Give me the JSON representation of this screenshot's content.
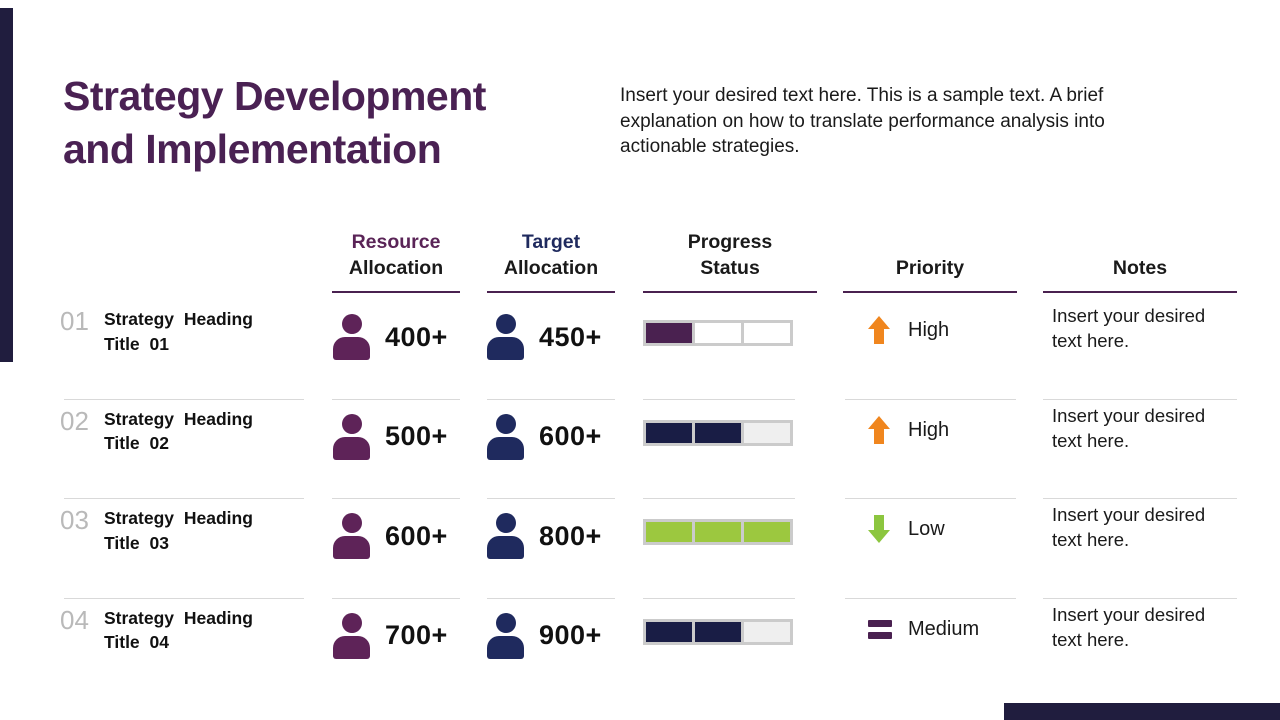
{
  "slide": {
    "title_line1": "Strategy Development",
    "title_line2": "and Implementation",
    "intro_text": "Insert your desired text here. This is a sample text. A brief explanation on how to translate performance analysis into actionable strategies."
  },
  "colors": {
    "title_purple": "#4A2153",
    "header_resource_purple": "#5A2457",
    "header_target_navy": "#1F2A5E",
    "header_text": "#1A1A1A",
    "accent_bar_navy": "#201D3E",
    "underline_purple": "#4A2150",
    "divider_gray": "#D9D9D9",
    "row_number_gray": "#B9B9B9",
    "resource_icon": "#5E2358",
    "target_icon": "#1F2A5E",
    "progress_frame_gray": "#CBCBCB"
  },
  "table": {
    "headers": {
      "resource": {
        "line1": "Resource",
        "line2": "Allocation"
      },
      "target": {
        "line1": "Target",
        "line2": "Allocation"
      },
      "progress": {
        "line1": "Progress",
        "line2": "Status"
      },
      "priority": {
        "label": "Priority"
      },
      "notes": {
        "label": "Notes"
      }
    }
  },
  "rows": [
    {
      "number": "01",
      "heading": "Strategy Heading Title 01",
      "resource_value": "400+",
      "target_value": "450+",
      "progress": {
        "filled": 1,
        "total": 3,
        "fill_color": "#4A2150",
        "empty_color": "#FFFFFF"
      },
      "priority": {
        "icon": "arrow-up",
        "color": "#F0861E",
        "label": "High"
      },
      "notes": "Insert your desired text here."
    },
    {
      "number": "02",
      "heading": "Strategy Heading Title 02",
      "resource_value": "500+",
      "target_value": "600+",
      "progress": {
        "filled": 2,
        "total": 3,
        "fill_color": "#191D45",
        "empty_color": "#EFEFEF"
      },
      "priority": {
        "icon": "arrow-up",
        "color": "#F0861E",
        "label": "High"
      },
      "notes": "Insert your desired text here."
    },
    {
      "number": "03",
      "heading": "Strategy Heading Title 03",
      "resource_value": "600+",
      "target_value": "800+",
      "progress": {
        "filled": 3,
        "total": 3,
        "fill_color": "#9CC83F",
        "empty_color": "#EFEFEF"
      },
      "priority": {
        "icon": "arrow-down",
        "color": "#8CC63F",
        "label": "Low"
      },
      "notes": "Insert your desired text here."
    },
    {
      "number": "04",
      "heading": "Strategy Heading Title 04",
      "resource_value": "700+",
      "target_value": "900+",
      "progress": {
        "filled": 2,
        "total": 3,
        "fill_color": "#191D45",
        "empty_color": "#EFEFEF"
      },
      "priority": {
        "icon": "equals",
        "color": "#4A2150",
        "label": "Medium"
      },
      "notes": "Insert your desired text here."
    }
  ]
}
